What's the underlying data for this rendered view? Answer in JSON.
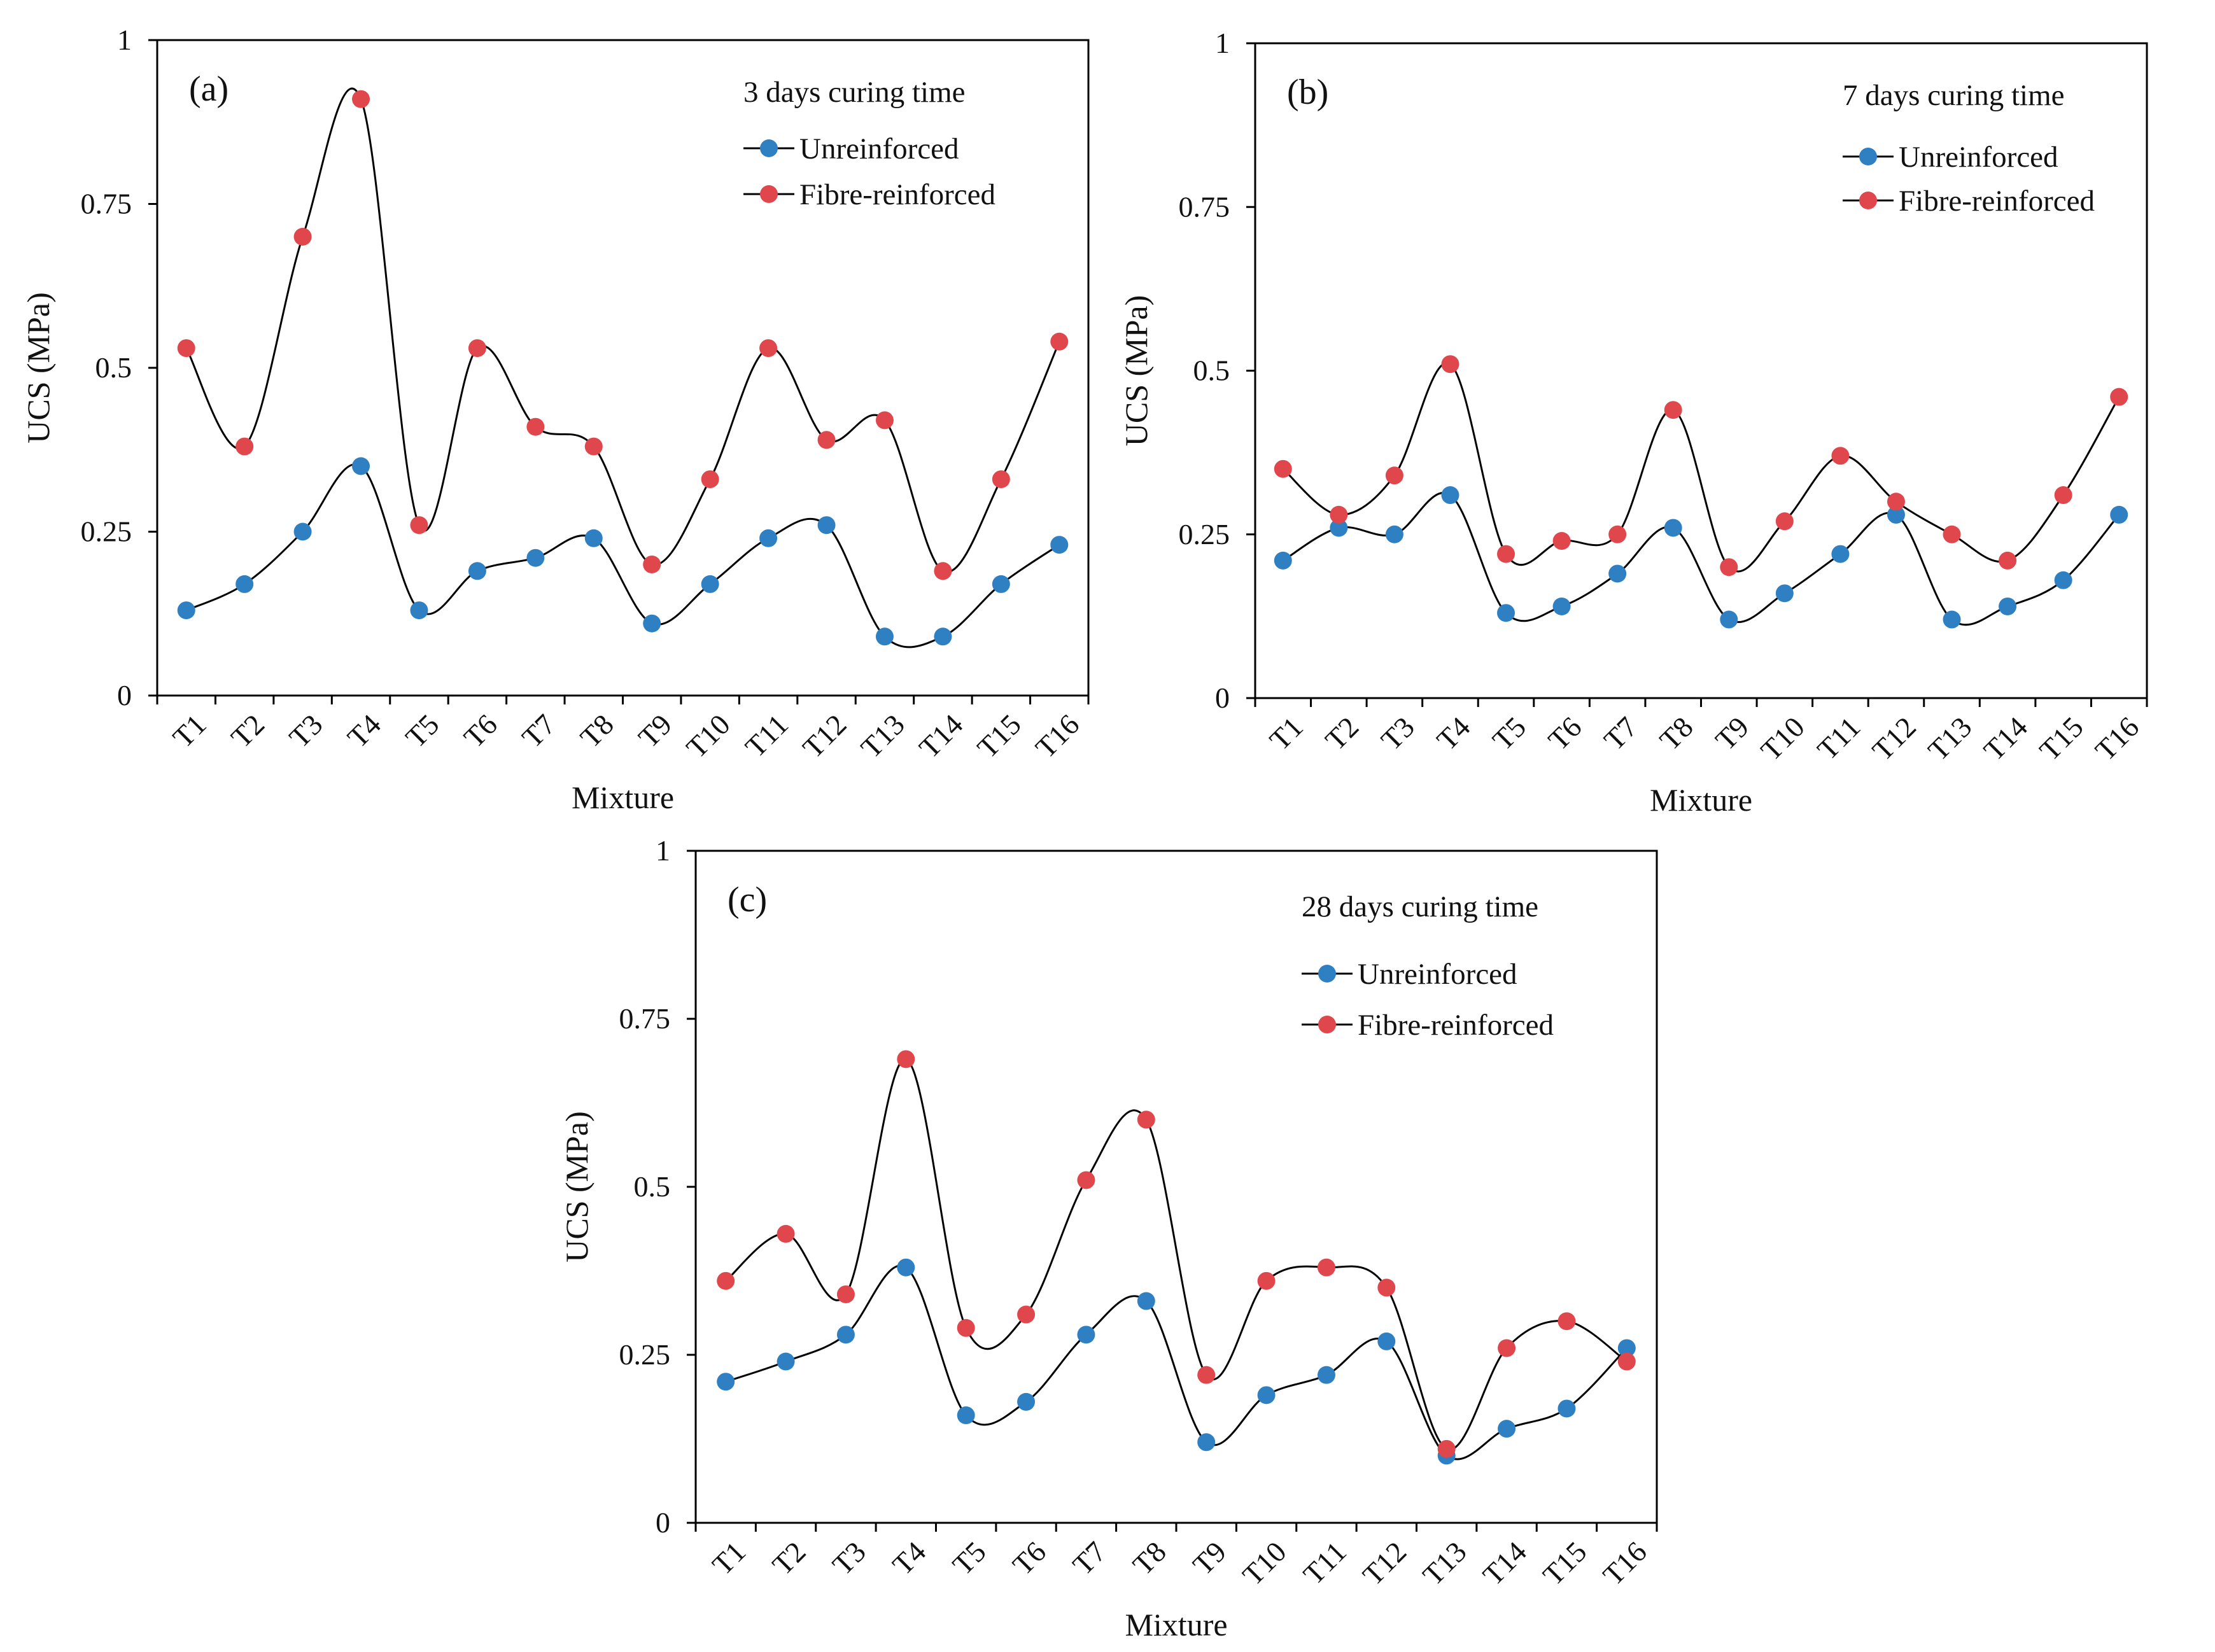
{
  "chart_data": [
    {
      "type": "line",
      "panel_label": "(a)",
      "title": "3 days curing time",
      "xlabel": "Mixture",
      "ylabel": "UCS (MPa)",
      "categories": [
        "T1",
        "T2",
        "T3",
        "T4",
        "T5",
        "T6",
        "T7",
        "T8",
        "T9",
        "T10",
        "T11",
        "T12",
        "T13",
        "T14",
        "T15",
        "T16"
      ],
      "ylim": [
        0,
        1
      ],
      "yticks": [
        "0",
        "0.25",
        "0.5",
        "0.75",
        "1"
      ],
      "ytick_values": [
        0,
        0.25,
        0.5,
        0.75,
        1
      ],
      "legend_position": "top-right",
      "series": [
        {
          "name": "Unreinforced",
          "color": "#2f80c3",
          "values": [
            0.13,
            0.17,
            0.25,
            0.35,
            0.13,
            0.19,
            0.21,
            0.24,
            0.11,
            0.17,
            0.24,
            0.26,
            0.09,
            0.09,
            0.17,
            0.23
          ]
        },
        {
          "name": "Fibre-reinforced",
          "color": "#e0474c",
          "values": [
            0.53,
            0.38,
            0.7,
            0.91,
            0.26,
            0.53,
            0.41,
            0.38,
            0.2,
            0.33,
            0.53,
            0.39,
            0.42,
            0.19,
            0.33,
            0.54
          ]
        }
      ]
    },
    {
      "type": "line",
      "panel_label": "(b)",
      "title": "7 days curing time",
      "xlabel": "Mixture",
      "ylabel": "UCS (MPa)",
      "categories": [
        "T1",
        "T2",
        "T3",
        "T4",
        "T5",
        "T6",
        "T7",
        "T8",
        "T9",
        "T10",
        "T11",
        "T12",
        "T13",
        "T14",
        "T15",
        "T16"
      ],
      "ylim": [
        0,
        1
      ],
      "yticks": [
        "0",
        "0.25",
        "0.5",
        "0.75",
        "1"
      ],
      "ytick_values": [
        0,
        0.25,
        0.5,
        0.75,
        1
      ],
      "legend_position": "top-right",
      "series": [
        {
          "name": "Unreinforced",
          "color": "#2f80c3",
          "values": [
            0.21,
            0.26,
            0.25,
            0.31,
            0.13,
            0.14,
            0.19,
            0.26,
            0.12,
            0.16,
            0.22,
            0.28,
            0.12,
            0.14,
            0.18,
            0.28
          ]
        },
        {
          "name": "Fibre-reinforced",
          "color": "#e0474c",
          "values": [
            0.35,
            0.28,
            0.34,
            0.51,
            0.22,
            0.24,
            0.25,
            0.44,
            0.2,
            0.27,
            0.37,
            0.3,
            0.25,
            0.21,
            0.31,
            0.46
          ]
        }
      ]
    },
    {
      "type": "line",
      "panel_label": "(c)",
      "title": "28 days curing time",
      "xlabel": "Mixture",
      "ylabel": "UCS (MPa)",
      "categories": [
        "T1",
        "T2",
        "T3",
        "T4",
        "T5",
        "T6",
        "T7",
        "T8",
        "T9",
        "T10",
        "T11",
        "T12",
        "T13",
        "T14",
        "T15",
        "T16"
      ],
      "ylim": [
        0,
        1
      ],
      "yticks": [
        "0",
        "0.25",
        "0.5",
        "0.75",
        "1"
      ],
      "ytick_values": [
        0,
        0.25,
        0.5,
        0.75,
        1
      ],
      "legend_position": "top-right",
      "series": [
        {
          "name": "Unreinforced",
          "color": "#2f80c3",
          "values": [
            0.21,
            0.24,
            0.28,
            0.38,
            0.16,
            0.18,
            0.28,
            0.33,
            0.12,
            0.19,
            0.22,
            0.27,
            0.1,
            0.14,
            0.17,
            0.26
          ]
        },
        {
          "name": "Fibre-reinforced",
          "color": "#e0474c",
          "values": [
            0.36,
            0.43,
            0.34,
            0.69,
            0.29,
            0.31,
            0.51,
            0.6,
            0.22,
            0.36,
            0.38,
            0.35,
            0.11,
            0.26,
            0.3,
            0.24
          ]
        }
      ]
    }
  ]
}
